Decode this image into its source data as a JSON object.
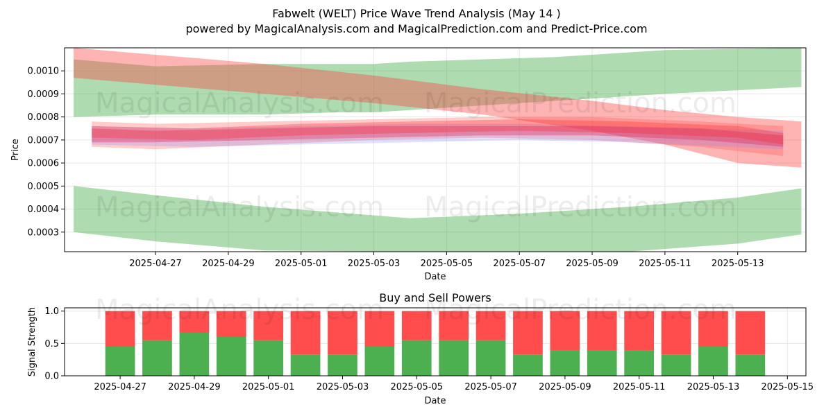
{
  "chart_data": [
    {
      "type": "area",
      "title": "Fabwelt (WELT) Price Wave Trend Analysis (May 14 )",
      "subtitle": "powered by MagicalAnalysis.com and MagicalPrediction.com and Predict-Price.com",
      "xlabel": "Date",
      "ylabel": "Price",
      "x_ticks": [
        "2025-04-27",
        "2025-04-29",
        "2025-05-01",
        "2025-05-03",
        "2025-05-05",
        "2025-05-07",
        "2025-05-09",
        "2025-05-11",
        "2025-05-13"
      ],
      "y_ticks": [
        "0.0003",
        "0.0004",
        "0.0005",
        "0.0006",
        "0.0007",
        "0.0008",
        "0.0009",
        "0.0010"
      ],
      "xlim": [
        "2025-04-24 12:00",
        "2025-05-14 21:00"
      ],
      "ylim": [
        0.000215,
        0.0011
      ],
      "grid": true,
      "watermarks": [
        "MagicalAnalysis.com",
        "MagicalPrediction.com"
      ],
      "bands": [
        {
          "color": "#4caf50",
          "opacity": 0.45,
          "x": [
            "2025-04-24 18:00",
            "2025-04-27 00:00",
            "2025-04-30 00:00",
            "2025-05-02 00:00",
            "2025-05-03 00:00",
            "2025-05-04 00:00",
            "2025-05-08 00:00",
            "2025-05-11 00:00",
            "2025-05-14 18:00"
          ],
          "upper": [
            0.00105,
            0.00102,
            0.00103,
            0.00103,
            0.00103,
            0.00104,
            0.00106,
            0.00109,
            0.0011
          ],
          "lower": [
            0.0008,
            0.00081,
            0.00081,
            0.00082,
            0.00082,
            0.00083,
            0.00087,
            0.0009,
            0.00093
          ]
        },
        {
          "color": "#ff4444",
          "opacity": 0.4,
          "x": [
            "2025-04-24 18:00",
            "2025-04-27 00:00",
            "2025-04-30 00:00",
            "2025-05-03 00:00",
            "2025-05-06 00:00",
            "2025-05-09 00:00",
            "2025-05-11 00:00",
            "2025-05-13 00:00",
            "2025-05-14 18:00"
          ],
          "upper": [
            0.0011,
            0.00107,
            0.00103,
            0.00098,
            0.00092,
            0.00087,
            0.00083,
            0.0008,
            0.00078
          ],
          "lower": [
            0.00097,
            0.00094,
            0.0009,
            0.00086,
            0.00081,
            0.00074,
            0.00068,
            0.0006,
            0.00058
          ]
        },
        {
          "color": "#4caf50",
          "opacity": 0.45,
          "x": [
            "2025-04-24 18:00",
            "2025-04-27 00:00",
            "2025-04-30 00:00",
            "2025-05-04 00:00",
            "2025-05-07 00:00",
            "2025-05-10 00:00",
            "2025-05-13 00:00",
            "2025-05-14 18:00"
          ],
          "upper": [
            0.0005,
            0.00046,
            0.00041,
            0.00036,
            0.00038,
            0.00041,
            0.00045,
            0.00049
          ],
          "lower": [
            0.0003,
            0.00026,
            0.00022,
            0.0002,
            0.0002,
            0.00021,
            0.00025,
            0.00029
          ]
        },
        {
          "color": "#ff4444",
          "opacity": 0.28,
          "x": [
            "2025-04-25 06:00",
            "2025-04-27 00:00",
            "2025-04-30 00:00",
            "2025-05-03 00:00",
            "2025-05-06 00:00",
            "2025-05-09 00:00",
            "2025-05-12 00:00",
            "2025-05-14 06:00"
          ],
          "upper": [
            0.00078,
            0.00077,
            0.00078,
            0.00079,
            0.0008,
            0.0008,
            0.00078,
            0.00076
          ],
          "lower": [
            0.00067,
            0.00066,
            0.00068,
            0.0007,
            0.00071,
            0.0007,
            0.00067,
            0.00063
          ]
        },
        {
          "color": "#8888ff",
          "opacity": 0.25,
          "x": [
            "2025-04-25 06:00",
            "2025-04-28 00:00",
            "2025-05-01 00:00",
            "2025-05-04 00:00",
            "2025-05-07 00:00",
            "2025-05-10 00:00",
            "2025-05-14 06:00"
          ],
          "upper": [
            0.00076,
            0.00075,
            0.00076,
            0.00077,
            0.00077,
            0.00076,
            0.00074
          ],
          "lower": [
            0.00068,
            0.00067,
            0.00068,
            0.00069,
            0.0007,
            0.00069,
            0.00066
          ]
        },
        {
          "color": "#dd2255",
          "opacity": 0.35,
          "x": [
            "2025-04-25 06:00",
            "2025-04-27 00:00",
            "2025-04-30 00:00",
            "2025-05-03 00:00",
            "2025-05-06 00:00",
            "2025-05-09 00:00",
            "2025-05-12 00:00",
            "2025-05-14 06:00"
          ],
          "upper": [
            0.00075,
            0.00074,
            0.00075,
            0.00076,
            0.00076,
            0.00076,
            0.00075,
            0.00072
          ],
          "lower": [
            0.00069,
            0.00069,
            0.0007,
            0.00071,
            0.00072,
            0.00072,
            0.0007,
            0.00067
          ]
        },
        {
          "color": "#ff2222",
          "opacity": 0.3,
          "x": [
            "2025-04-25 06:00",
            "2025-04-28 00:00",
            "2025-05-01 00:00",
            "2025-05-04 00:00",
            "2025-05-07 00:00",
            "2025-05-10 00:00",
            "2025-05-13 00:00",
            "2025-05-14 06:00"
          ],
          "upper": [
            0.00076,
            0.00075,
            0.00077,
            0.00078,
            0.00079,
            0.00078,
            0.00076,
            0.00073
          ],
          "lower": [
            0.00071,
            0.0007,
            0.00072,
            0.00073,
            0.00074,
            0.00073,
            0.00071,
            0.00068
          ]
        }
      ]
    },
    {
      "type": "bar",
      "stacked": true,
      "title": "Buy and Sell Powers",
      "xlabel": "Date",
      "ylabel": "Signal Strength",
      "x_ticks": [
        "2025-04-27",
        "2025-04-29",
        "2025-05-01",
        "2025-05-03",
        "2025-05-05",
        "2025-05-07",
        "2025-05-09",
        "2025-05-11",
        "2025-05-13",
        "2025-05-15"
      ],
      "y_ticks": [
        "0.0",
        "0.5",
        "1.0"
      ],
      "xlim": [
        "2025-04-25 12:00",
        "2025-05-15 12:00"
      ],
      "ylim": [
        0,
        1.05
      ],
      "grid": true,
      "categories": [
        "2025-04-27",
        "2025-04-28",
        "2025-04-29",
        "2025-04-30",
        "2025-05-01",
        "2025-05-02",
        "2025-05-03",
        "2025-05-04",
        "2025-05-05",
        "2025-05-06",
        "2025-05-07",
        "2025-05-08",
        "2025-05-09",
        "2025-05-10",
        "2025-05-11",
        "2025-05-12",
        "2025-05-13",
        "2025-05-14"
      ],
      "series": [
        {
          "color": "#4caf50",
          "values": [
            0.45,
            0.55,
            0.67,
            0.6,
            0.55,
            0.33,
            0.33,
            0.45,
            0.55,
            0.55,
            0.55,
            0.33,
            0.39,
            0.39,
            0.39,
            0.33,
            0.45,
            0.33
          ]
        },
        {
          "color": "#ff4c4c",
          "values": [
            0.55,
            0.45,
            0.33,
            0.4,
            0.45,
            0.67,
            0.67,
            0.55,
            0.45,
            0.45,
            0.45,
            0.67,
            0.61,
            0.61,
            0.61,
            0.67,
            0.55,
            0.67
          ]
        }
      ]
    }
  ]
}
